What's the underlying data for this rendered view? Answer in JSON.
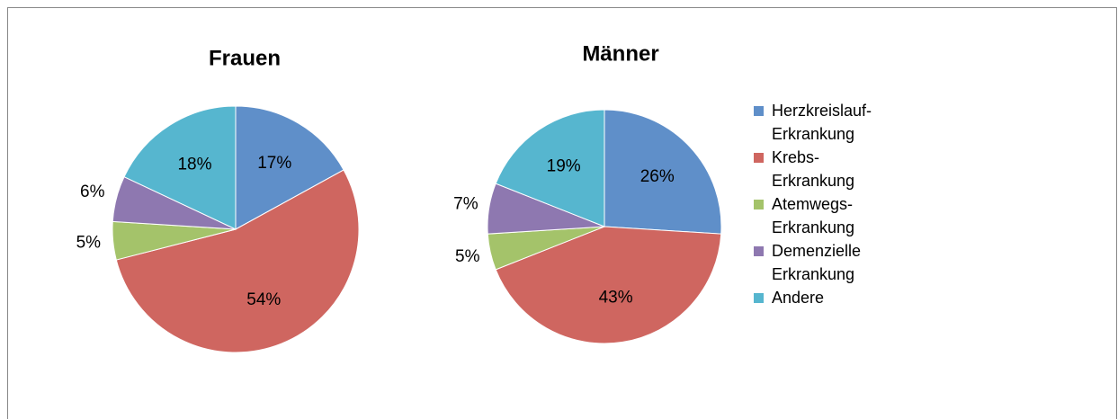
{
  "chart_data": [
    {
      "type": "pie",
      "title": "Frauen",
      "categories": [
        "Herzkreislauf-Erkrankung",
        "Krebs-Erkrankung",
        "Atemwegs-Erkrankung",
        "Demenzielle Erkrankung",
        "Andere"
      ],
      "values": [
        17,
        54,
        5,
        6,
        18
      ],
      "value_labels": [
        "17%",
        "54%",
        "5%",
        "6%",
        "18%"
      ],
      "colors": [
        "#5f8fc9",
        "#cf6660",
        "#a4c36a",
        "#8e78b0",
        "#56b6cf"
      ]
    },
    {
      "type": "pie",
      "title": "Männer",
      "values": [
        26,
        43,
        5,
        7,
        19
      ],
      "value_labels": [
        "26%",
        "43%",
        "5%",
        "7%",
        "19%"
      ],
      "colors": [
        "#5f8fc9",
        "#cf6660",
        "#a4c36a",
        "#8e78b0",
        "#56b6cf"
      ]
    }
  ]
}
